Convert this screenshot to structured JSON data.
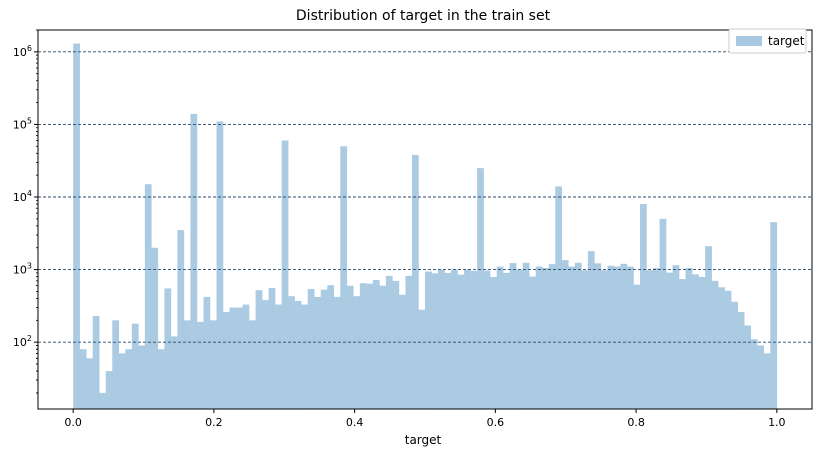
{
  "chart_data": {
    "type": "bar",
    "title": "Distribution of target in the train set",
    "xlabel": "target",
    "ylabel": "",
    "xlim": [
      -0.05,
      1.05
    ],
    "ylim": [
      12,
      2000000
    ],
    "yscale": "log",
    "x_ticks": [
      {
        "value": 0.0,
        "label": "0.0"
      },
      {
        "value": 0.2,
        "label": "0.2"
      },
      {
        "value": 0.4,
        "label": "0.4"
      },
      {
        "value": 0.6,
        "label": "0.6"
      },
      {
        "value": 0.8,
        "label": "0.8"
      },
      {
        "value": 1.0,
        "label": "1.0"
      }
    ],
    "y_ticks": [
      {
        "value": 100,
        "base": "10",
        "exp": "2"
      },
      {
        "value": 1000,
        "base": "10",
        "exp": "3"
      },
      {
        "value": 10000,
        "base": "10",
        "exp": "4"
      },
      {
        "value": 100000,
        "base": "10",
        "exp": "5"
      },
      {
        "value": 1000000,
        "base": "10",
        "exp": "6"
      }
    ],
    "grid": "horizontal dashed at major y ticks",
    "legend_position": "top-right",
    "color": "#a6c8e2",
    "series": [
      {
        "name": "target",
        "bin_start": 0.0,
        "bin_end": 1.0,
        "values": [
          1300000,
          80,
          60,
          230,
          20,
          40,
          200,
          70,
          80,
          180,
          90,
          15000,
          2000,
          80,
          550,
          120,
          3500,
          200,
          140000,
          190,
          420,
          200,
          110000,
          260,
          300,
          300,
          330,
          200,
          520,
          380,
          560,
          330,
          60000,
          430,
          370,
          330,
          540,
          420,
          530,
          610,
          420,
          50000,
          600,
          430,
          650,
          640,
          720,
          600,
          820,
          700,
          450,
          820,
          38000,
          280,
          940,
          890,
          1000,
          900,
          1000,
          850,
          1000,
          960,
          25000,
          970,
          790,
          1100,
          900,
          1230,
          1000,
          1240,
          800,
          1100,
          1050,
          1190,
          14000,
          1350,
          1100,
          1240,
          980,
          1800,
          1220,
          980,
          1130,
          1100,
          1200,
          1100,
          620,
          8000,
          980,
          1050,
          5000,
          910,
          1150,
          740,
          1050,
          860,
          790,
          2100,
          700,
          570,
          510,
          360,
          260,
          170,
          110,
          90,
          70,
          4500
        ]
      }
    ]
  }
}
